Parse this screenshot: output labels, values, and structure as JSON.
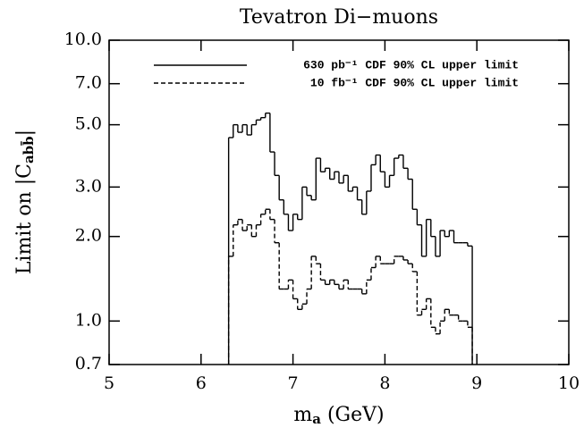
{
  "chart_data": {
    "type": "line",
    "title": "Tevatron Di−muons",
    "xlabel": {
      "main": "m",
      "sub": "a",
      "rest": " (GeV)"
    },
    "ylabel": {
      "main": "Limit on |C",
      "sub": "abb̄",
      "rest": "|"
    },
    "xlim": [
      5,
      10
    ],
    "xticks": [
      5,
      6,
      7,
      8,
      9,
      10
    ],
    "ylim": [
      0.7,
      10
    ],
    "log_y": true,
    "yticks": [
      {
        "value": 0.7,
        "label": "0.7"
      },
      {
        "value": 1,
        "label": "1.0"
      },
      {
        "value": 2,
        "label": "2.0"
      },
      {
        "value": 3,
        "label": "3.0"
      },
      {
        "value": 5,
        "label": "5.0"
      },
      {
        "value": 7,
        "label": "7.0"
      },
      {
        "value": 10,
        "label": "10.0"
      }
    ],
    "legend": "upper right",
    "x": [
      6.3,
      6.35,
      6.4,
      6.45,
      6.5,
      6.55,
      6.6,
      6.65,
      6.7,
      6.75,
      6.8,
      6.85,
      6.9,
      6.95,
      7.0,
      7.05,
      7.1,
      7.15,
      7.2,
      7.25,
      7.3,
      7.35,
      7.4,
      7.45,
      7.5,
      7.55,
      7.6,
      7.65,
      7.7,
      7.75,
      7.8,
      7.85,
      7.9,
      7.95,
      8.0,
      8.05,
      8.1,
      8.15,
      8.2,
      8.25,
      8.3,
      8.35,
      8.4,
      8.45,
      8.5,
      8.55,
      8.6,
      8.65,
      8.7,
      8.75,
      8.8,
      8.85,
      8.9
    ],
    "series": [
      {
        "name": "630 pb⁻¹ CDF 90% CL upper limit",
        "color": "#000000",
        "dash": false,
        "values": [
          4.5,
          5.0,
          4.7,
          5.0,
          4.6,
          5.0,
          5.2,
          5.3,
          5.5,
          4.0,
          3.3,
          2.7,
          2.4,
          2.1,
          2.4,
          2.3,
          3.0,
          2.8,
          2.7,
          3.8,
          3.4,
          3.5,
          3.2,
          3.4,
          3.1,
          3.3,
          2.9,
          3.0,
          2.7,
          2.4,
          2.9,
          3.6,
          3.9,
          3.4,
          3.0,
          3.3,
          3.8,
          3.9,
          3.5,
          3.2,
          2.5,
          2.2,
          1.7,
          2.3,
          2.0,
          1.7,
          2.1,
          2.0,
          2.1,
          1.9,
          1.9,
          1.9,
          1.85
        ]
      },
      {
        "name": "10 fb⁻¹ CDF 90% CL upper limit",
        "color": "#000000",
        "dash": true,
        "values": [
          1.7,
          2.2,
          2.3,
          2.1,
          2.2,
          2.0,
          2.2,
          2.4,
          2.5,
          2.3,
          1.9,
          1.3,
          1.3,
          1.4,
          1.2,
          1.1,
          1.15,
          1.3,
          1.7,
          1.6,
          1.4,
          1.35,
          1.4,
          1.35,
          1.3,
          1.4,
          1.3,
          1.3,
          1.3,
          1.25,
          1.4,
          1.55,
          1.7,
          1.6,
          1.6,
          1.6,
          1.7,
          1.7,
          1.65,
          1.6,
          1.5,
          1.05,
          1.1,
          1.2,
          0.95,
          0.9,
          1.0,
          1.1,
          1.05,
          1.05,
          1.0,
          1.0,
          0.95
        ]
      }
    ]
  }
}
